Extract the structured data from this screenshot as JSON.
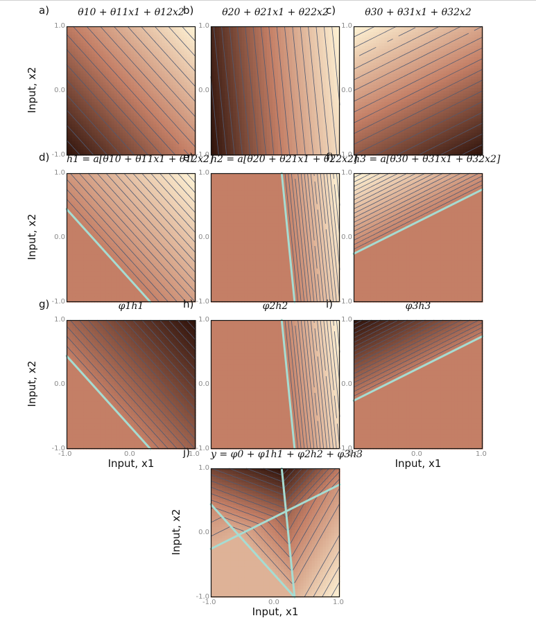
{
  "panels": [
    {
      "id": "a",
      "label": "a)",
      "title": "θ10 + θ11x1 + θ12x2",
      "kind": "lin",
      "idx": 0
    },
    {
      "id": "b",
      "label": "b)",
      "title": "θ20 + θ21x1 + θ22x2",
      "kind": "lin",
      "idx": 1
    },
    {
      "id": "c",
      "label": "c)",
      "title": "θ30 + θ31x1 + θ32x2",
      "kind": "lin",
      "idx": 2
    },
    {
      "id": "d",
      "label": "d)",
      "title": "h1 = a[θ10 + θ11x1 + θ12x2]",
      "kind": "relu",
      "idx": 0
    },
    {
      "id": "e",
      "label": "e)",
      "title": "h2 = a[θ20 + θ21x1 + θ22x2]",
      "kind": "relu",
      "idx": 1
    },
    {
      "id": "f",
      "label": "f)",
      "title": "h3 = a[θ30 + θ31x1 + θ32x2]",
      "kind": "relu",
      "idx": 2
    },
    {
      "id": "g",
      "label": "g)",
      "title": "φ1h1",
      "kind": "weighted",
      "idx": 0
    },
    {
      "id": "h",
      "label": "h)",
      "title": "φ2h2",
      "kind": "weighted",
      "idx": 1
    },
    {
      "id": "i",
      "label": "i)",
      "title": "φ3h3",
      "kind": "weighted",
      "idx": 2
    },
    {
      "id": "j",
      "label": "j)",
      "title": "y = φ0 + φ1h1 + φ2h2 + φ3h3",
      "kind": "sum",
      "idx": -1
    }
  ],
  "axes": {
    "xlabel": "Input, x1",
    "ylabel": "Input, x2",
    "ticks": [
      "-1.0",
      "0.0",
      "1.0"
    ],
    "range": [
      -1,
      1
    ]
  },
  "colors": {
    "dark": "#2e120a",
    "mid": "#c47f66",
    "light": "#fff4d6",
    "contour": "#4f5a72",
    "boundary": "#a6dcd2",
    "border": "#111111"
  }
}
